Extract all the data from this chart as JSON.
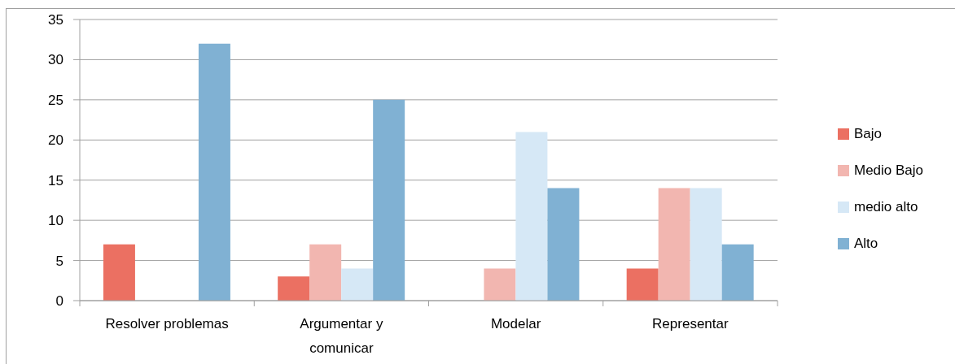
{
  "chart_data": {
    "type": "bar",
    "categories": [
      "Resolver problemas",
      "Argumentar y comunicar",
      "Modelar",
      "Representar"
    ],
    "series": [
      {
        "name": "Bajo",
        "color": "#eb7062",
        "values": [
          7,
          3,
          0,
          4
        ]
      },
      {
        "name": "Medio Bajo",
        "color": "#f2b6b0",
        "values": [
          0,
          7,
          4,
          14
        ]
      },
      {
        "name": "medio alto",
        "color": "#d6e8f6",
        "values": [
          0,
          4,
          21,
          14
        ]
      },
      {
        "name": "Alto",
        "color": "#80b1d3",
        "values": [
          32,
          25,
          14,
          7
        ]
      }
    ],
    "ylim": [
      0,
      35
    ],
    "yticks": [
      0,
      5,
      10,
      15,
      20,
      25,
      30,
      35
    ],
    "grid": "y",
    "legend": "right"
  }
}
